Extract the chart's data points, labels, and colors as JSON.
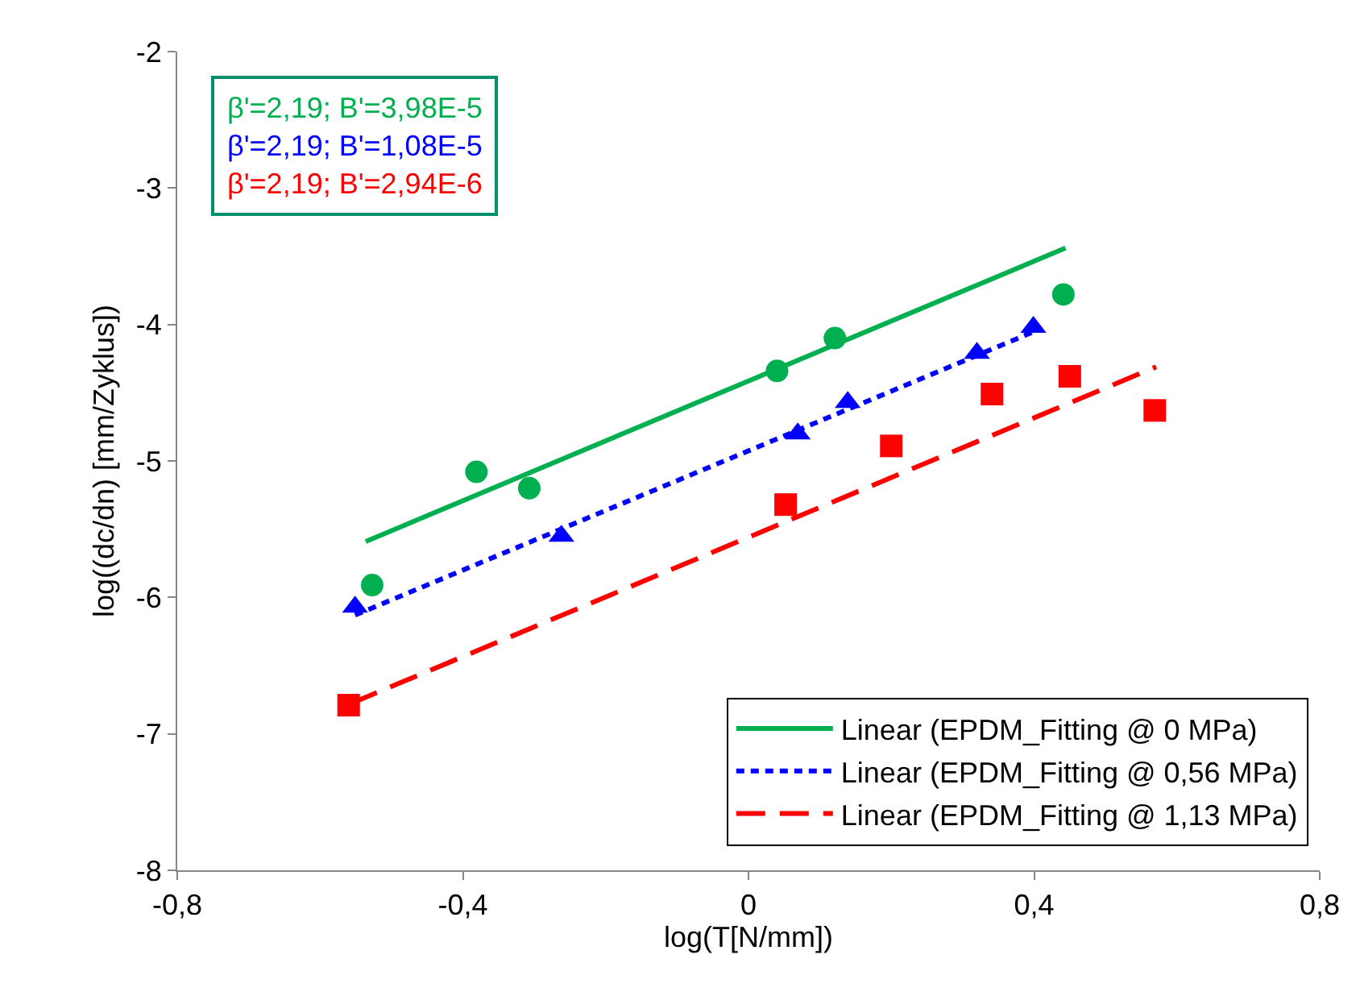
{
  "chart_data": {
    "type": "scatter",
    "xlabel": "log(T[N/mm])",
    "ylabel": "log((dc/dn) [mm/Zyklus])",
    "xlim": [
      -0.8,
      0.8
    ],
    "ylim": [
      -8,
      -2
    ],
    "xticks": [
      {
        "value": -0.8,
        "label": "-0,8"
      },
      {
        "value": -0.4,
        "label": "-0,4"
      },
      0,
      {
        "value": 0.4,
        "label": "0,4"
      },
      {
        "value": 0.8,
        "label": "0,8"
      }
    ],
    "yticks": [
      -8,
      -7,
      -6,
      -5,
      -4,
      -3,
      -2
    ],
    "legend": "bottom right",
    "annotations": [
      "β'=2,19; B'=3,98E-5",
      "β'=2,19; B'=1,08E-5",
      "β'=2,19; B'=2,94E-6"
    ],
    "series": [
      {
        "marker": "circle",
        "color": "#00b050",
        "x": [
          -0.527,
          -0.381,
          -0.307,
          0.04,
          0.121,
          0.441
        ],
        "values": [
          -5.91,
          -5.08,
          -5.2,
          -4.34,
          -4.1,
          -3.78
        ]
      },
      {
        "marker": "triangle",
        "color": "#0000ff",
        "x": [
          -0.551,
          -0.262,
          0.069,
          0.139,
          0.32,
          0.399
        ],
        "values": [
          -6.07,
          -5.55,
          -4.8,
          -4.57,
          -4.21,
          -4.02
        ]
      },
      {
        "marker": "square",
        "color": "#ff0000",
        "x": [
          -0.56,
          0.052,
          0.2,
          0.341,
          0.45,
          0.569
        ],
        "values": [
          -6.79,
          -5.32,
          -4.89,
          -4.51,
          -4.38,
          -4.63
        ]
      },
      {
        "type": "line",
        "name": "Linear (EPDM_Fitting @ 0 MPa)",
        "line_style": "solid",
        "color": "#00b050",
        "x": [
          -0.536,
          0.444
        ],
        "values": [
          -5.59,
          -3.44
        ]
      },
      {
        "type": "line",
        "name": "Linear (EPDM_Fitting @ 0,56 MPa)",
        "line_style": "dotted",
        "color": "#0000ff",
        "x": [
          -0.551,
          0.41
        ],
        "values": [
          -6.13,
          -4.03
        ]
      },
      {
        "type": "line",
        "name": "Linear (EPDM_Fitting @ 1,13 MPa)",
        "line_style": "dashed",
        "color": "#ff0000",
        "x": [
          -0.558,
          0.571
        ],
        "values": [
          -6.78,
          -4.31
        ]
      }
    ]
  }
}
